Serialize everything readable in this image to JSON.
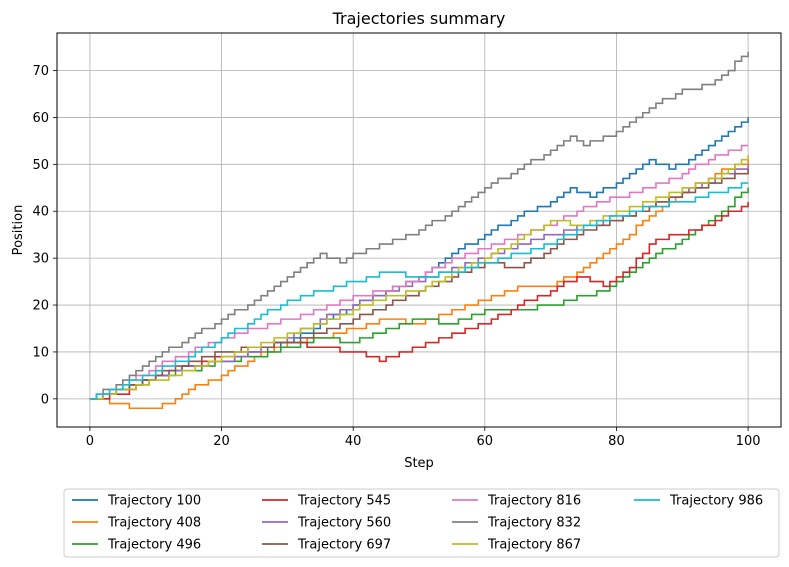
{
  "chart_data": {
    "type": "line",
    "title": "Trajectories summary",
    "xlabel": "Step",
    "ylabel": "Position",
    "xlim": [
      -5,
      105
    ],
    "ylim": [
      -6,
      78
    ],
    "xticks": [
      0,
      20,
      40,
      60,
      80,
      100
    ],
    "yticks": [
      0,
      10,
      20,
      30,
      40,
      50,
      60,
      70
    ],
    "grid": true,
    "step_style": "post",
    "legend_position": "bottom, outside, 4 columns",
    "series": [
      {
        "name": "Trajectory 100",
        "color": "#1f77b4",
        "points": [
          [
            0,
            0
          ],
          [
            5,
            2
          ],
          [
            10,
            5
          ],
          [
            15,
            7
          ],
          [
            20,
            8
          ],
          [
            25,
            10
          ],
          [
            30,
            12
          ],
          [
            35,
            16
          ],
          [
            40,
            20
          ],
          [
            45,
            23
          ],
          [
            50,
            26
          ],
          [
            55,
            31
          ],
          [
            60,
            35
          ],
          [
            65,
            39
          ],
          [
            70,
            42
          ],
          [
            73,
            45
          ],
          [
            76,
            43
          ],
          [
            80,
            46
          ],
          [
            85,
            51
          ],
          [
            88,
            49
          ],
          [
            91,
            51
          ],
          [
            95,
            55
          ],
          [
            100,
            60
          ]
        ]
      },
      {
        "name": "Trajectory 408",
        "color": "#ff7f0e",
        "points": [
          [
            0,
            0
          ],
          [
            4,
            -1
          ],
          [
            6,
            -2
          ],
          [
            10,
            -2
          ],
          [
            12,
            -1
          ],
          [
            15,
            2
          ],
          [
            20,
            5
          ],
          [
            25,
            9
          ],
          [
            30,
            12
          ],
          [
            35,
            13
          ],
          [
            40,
            15
          ],
          [
            45,
            17
          ],
          [
            50,
            16
          ],
          [
            55,
            19
          ],
          [
            60,
            21
          ],
          [
            65,
            24
          ],
          [
            70,
            24
          ],
          [
            75,
            28
          ],
          [
            80,
            33
          ],
          [
            85,
            39
          ],
          [
            90,
            44
          ],
          [
            95,
            48
          ],
          [
            100,
            51
          ]
        ]
      },
      {
        "name": "Trajectory 496",
        "color": "#2ca02c",
        "points": [
          [
            0,
            0
          ],
          [
            5,
            2
          ],
          [
            10,
            5
          ],
          [
            15,
            6
          ],
          [
            20,
            8
          ],
          [
            25,
            9
          ],
          [
            30,
            11
          ],
          [
            35,
            13
          ],
          [
            40,
            12
          ],
          [
            45,
            15
          ],
          [
            50,
            17
          ],
          [
            55,
            16
          ],
          [
            60,
            19
          ],
          [
            65,
            19
          ],
          [
            70,
            20
          ],
          [
            75,
            22
          ],
          [
            78,
            23
          ],
          [
            80,
            25
          ],
          [
            85,
            30
          ],
          [
            90,
            34
          ],
          [
            95,
            39
          ],
          [
            100,
            45
          ]
        ]
      },
      {
        "name": "Trajectory 545",
        "color": "#d62728",
        "points": [
          [
            0,
            0
          ],
          [
            5,
            1
          ],
          [
            10,
            5
          ],
          [
            15,
            7
          ],
          [
            20,
            9
          ],
          [
            25,
            11
          ],
          [
            30,
            12
          ],
          [
            35,
            11
          ],
          [
            40,
            10
          ],
          [
            44,
            8
          ],
          [
            48,
            10
          ],
          [
            52,
            12
          ],
          [
            56,
            14
          ],
          [
            60,
            16
          ],
          [
            65,
            20
          ],
          [
            70,
            23
          ],
          [
            74,
            26
          ],
          [
            78,
            24
          ],
          [
            82,
            28
          ],
          [
            86,
            34
          ],
          [
            90,
            35
          ],
          [
            95,
            38
          ],
          [
            100,
            42
          ]
        ]
      },
      {
        "name": "Trajectory 560",
        "color": "#9467bd",
        "points": [
          [
            0,
            0
          ],
          [
            5,
            2
          ],
          [
            10,
            5
          ],
          [
            15,
            7
          ],
          [
            20,
            8
          ],
          [
            25,
            10
          ],
          [
            30,
            13
          ],
          [
            35,
            17
          ],
          [
            40,
            20
          ],
          [
            45,
            23
          ],
          [
            50,
            25
          ],
          [
            55,
            28
          ],
          [
            60,
            30
          ],
          [
            65,
            33
          ],
          [
            70,
            35
          ],
          [
            75,
            37
          ],
          [
            80,
            38
          ],
          [
            85,
            41
          ],
          [
            90,
            44
          ],
          [
            95,
            47
          ],
          [
            100,
            50
          ]
        ]
      },
      {
        "name": "Trajectory 697",
        "color": "#8c564b",
        "points": [
          [
            0,
            0
          ],
          [
            5,
            2
          ],
          [
            10,
            5
          ],
          [
            15,
            8
          ],
          [
            20,
            10
          ],
          [
            25,
            11
          ],
          [
            30,
            12
          ],
          [
            35,
            14
          ],
          [
            40,
            17
          ],
          [
            45,
            20
          ],
          [
            50,
            23
          ],
          [
            55,
            26
          ],
          [
            60,
            29
          ],
          [
            65,
            28
          ],
          [
            70,
            32
          ],
          [
            75,
            36
          ],
          [
            80,
            38
          ],
          [
            85,
            41
          ],
          [
            90,
            44
          ],
          [
            95,
            46
          ],
          [
            100,
            49
          ]
        ]
      },
      {
        "name": "Trajectory 816",
        "color": "#e377c2",
        "points": [
          [
            0,
            0
          ],
          [
            5,
            3
          ],
          [
            10,
            7
          ],
          [
            15,
            10
          ],
          [
            20,
            13
          ],
          [
            25,
            15
          ],
          [
            30,
            17
          ],
          [
            35,
            19
          ],
          [
            40,
            22
          ],
          [
            45,
            23
          ],
          [
            50,
            26
          ],
          [
            55,
            30
          ],
          [
            60,
            32
          ],
          [
            65,
            35
          ],
          [
            70,
            37
          ],
          [
            75,
            41
          ],
          [
            80,
            43
          ],
          [
            85,
            45
          ],
          [
            90,
            48
          ],
          [
            95,
            52
          ],
          [
            100,
            54
          ]
        ]
      },
      {
        "name": "Trajectory 832",
        "color": "#7f7f7f",
        "points": [
          [
            0,
            0
          ],
          [
            5,
            4
          ],
          [
            10,
            9
          ],
          [
            15,
            13
          ],
          [
            20,
            17
          ],
          [
            25,
            21
          ],
          [
            30,
            26
          ],
          [
            35,
            31
          ],
          [
            38,
            29
          ],
          [
            40,
            31
          ],
          [
            45,
            33
          ],
          [
            50,
            36
          ],
          [
            55,
            40
          ],
          [
            60,
            45
          ],
          [
            65,
            49
          ],
          [
            70,
            53
          ],
          [
            73,
            56
          ],
          [
            75,
            54
          ],
          [
            80,
            57
          ],
          [
            85,
            62
          ],
          [
            90,
            66
          ],
          [
            92,
            66
          ],
          [
            95,
            68
          ],
          [
            100,
            74
          ]
        ]
      },
      {
        "name": "Trajectory 867",
        "color": "#bcbd22",
        "points": [
          [
            0,
            0
          ],
          [
            5,
            2
          ],
          [
            10,
            4
          ],
          [
            15,
            6
          ],
          [
            20,
            9
          ],
          [
            25,
            11
          ],
          [
            30,
            14
          ],
          [
            35,
            16
          ],
          [
            40,
            19
          ],
          [
            45,
            22
          ],
          [
            50,
            23
          ],
          [
            55,
            27
          ],
          [
            60,
            30
          ],
          [
            65,
            34
          ],
          [
            70,
            38
          ],
          [
            75,
            37
          ],
          [
            80,
            40
          ],
          [
            85,
            42
          ],
          [
            90,
            45
          ],
          [
            95,
            47
          ],
          [
            100,
            52
          ]
        ]
      },
      {
        "name": "Trajectory 986",
        "color": "#17becf",
        "points": [
          [
            0,
            0
          ],
          [
            5,
            3
          ],
          [
            10,
            6
          ],
          [
            15,
            9
          ],
          [
            20,
            13
          ],
          [
            25,
            17
          ],
          [
            30,
            21
          ],
          [
            35,
            23
          ],
          [
            40,
            25
          ],
          [
            45,
            27
          ],
          [
            50,
            26
          ],
          [
            55,
            27
          ],
          [
            60,
            29
          ],
          [
            65,
            31
          ],
          [
            70,
            33
          ],
          [
            75,
            37
          ],
          [
            80,
            39
          ],
          [
            85,
            41
          ],
          [
            90,
            42
          ],
          [
            95,
            44
          ],
          [
            100,
            46
          ]
        ]
      }
    ]
  }
}
